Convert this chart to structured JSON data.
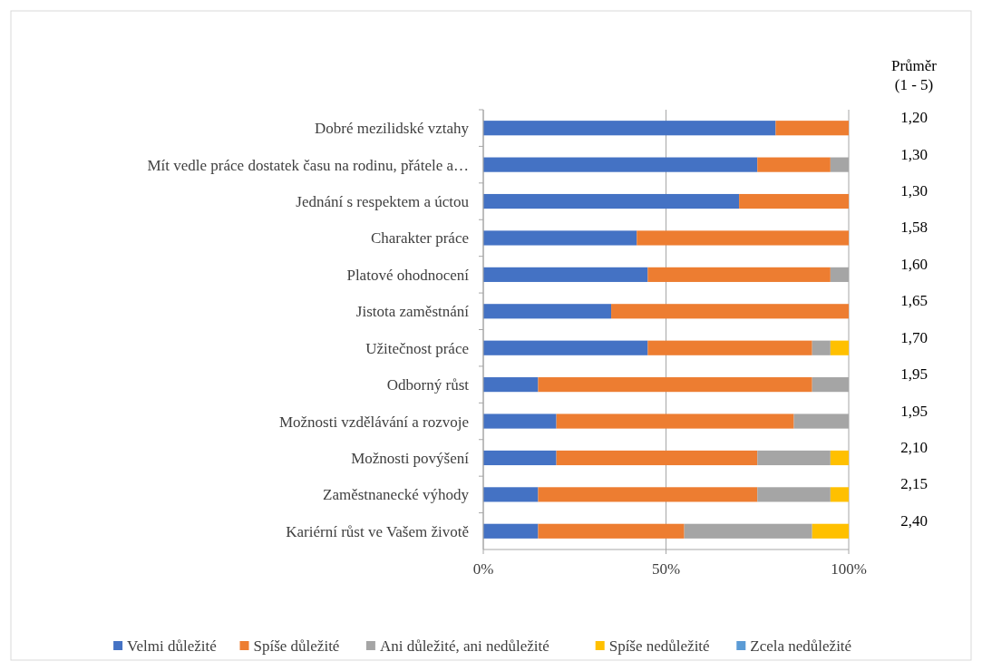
{
  "chart_data": {
    "type": "bar",
    "orientation": "horizontal",
    "stacked": true,
    "categories": [
      "Dobré mezilidské vztahy",
      "Mít vedle práce dostatek času na rodinu, přátele a…",
      "Jednání s respektem a úctou",
      "Charakter práce",
      "Platové ohodnocení",
      "Jistota zaměstnání",
      "Užitečnost práce",
      "Odborný růst",
      "Možnosti vzdělávání a rozvoje",
      "Možnosti povýšení",
      "Zaměstnanecké výhody",
      "Kariérní růst ve Vašem životě"
    ],
    "series": [
      {
        "name": "Velmi důležité",
        "color": "#4472c4",
        "values": [
          80,
          75,
          70,
          42,
          45,
          35,
          45,
          15,
          20,
          20,
          15,
          15
        ]
      },
      {
        "name": "Spíše důležité",
        "color": "#ed7d31",
        "values": [
          20,
          20,
          30,
          58,
          50,
          65,
          45,
          75,
          65,
          55,
          60,
          40
        ]
      },
      {
        "name": "Ani důležité, ani nedůležité",
        "color": "#a5a5a5",
        "values": [
          0,
          5,
          0,
          0,
          5,
          0,
          5,
          10,
          15,
          20,
          20,
          35
        ]
      },
      {
        "name": "Spíše nedůležité",
        "color": "#ffc000",
        "values": [
          0,
          0,
          0,
          0,
          0,
          0,
          5,
          0,
          0,
          5,
          5,
          10
        ]
      },
      {
        "name": "Zcela nedůležité",
        "color": "#5b9bd5",
        "values": [
          0,
          0,
          0,
          0,
          0,
          0,
          0,
          0,
          0,
          0,
          0,
          0
        ]
      }
    ],
    "xlim": [
      0,
      100
    ],
    "xticks": [
      {
        "value": 0,
        "label": "0%"
      },
      {
        "value": 50,
        "label": "50%"
      },
      {
        "value": 100,
        "label": "100%"
      }
    ],
    "grid": "x",
    "legend": "bottom",
    "annotations": [
      "Průměr (1 - 5)",
      "1,20",
      "1,30",
      "1,30",
      "1,58",
      "1,60",
      "1,65",
      "1,70",
      "1,95",
      "1,95",
      "2,10",
      "2,15",
      "2,40"
    ]
  }
}
